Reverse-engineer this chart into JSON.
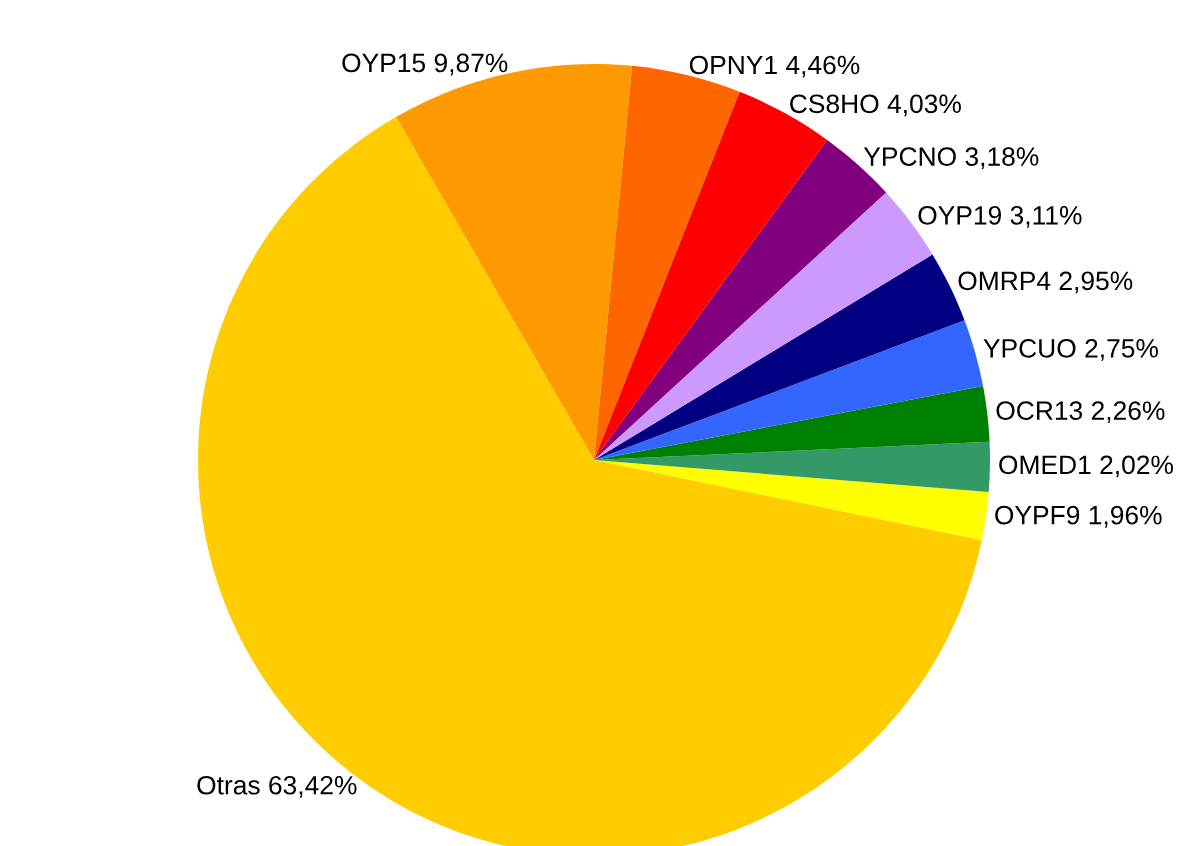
{
  "chart_data": {
    "type": "pie",
    "categories": [
      "OYPF9",
      "OMED1",
      "OCR13",
      "YPCUO",
      "OMRP4",
      "OYP19",
      "YPCNO",
      "CS8HO",
      "OPNY1",
      "OYP15",
      "Otras"
    ],
    "values": [
      1.96,
      2.02,
      2.26,
      2.75,
      2.95,
      3.11,
      3.18,
      4.03,
      4.46,
      9.87,
      63.42
    ],
    "value_labels": [
      "1,96%",
      "2,02%",
      "2,26%",
      "2,75%",
      "2,95%",
      "3,11%",
      "3,18%",
      "4,03%",
      "4,46%",
      "9,87%",
      "63,42%"
    ],
    "colors": [
      "#ffff00",
      "#339966",
      "#008000",
      "#3366ff",
      "#000080",
      "#cc99ff",
      "#800080",
      "#ff0000",
      "#ff6600",
      "#ff9900",
      "#ffcc00"
    ],
    "legend": false
  }
}
